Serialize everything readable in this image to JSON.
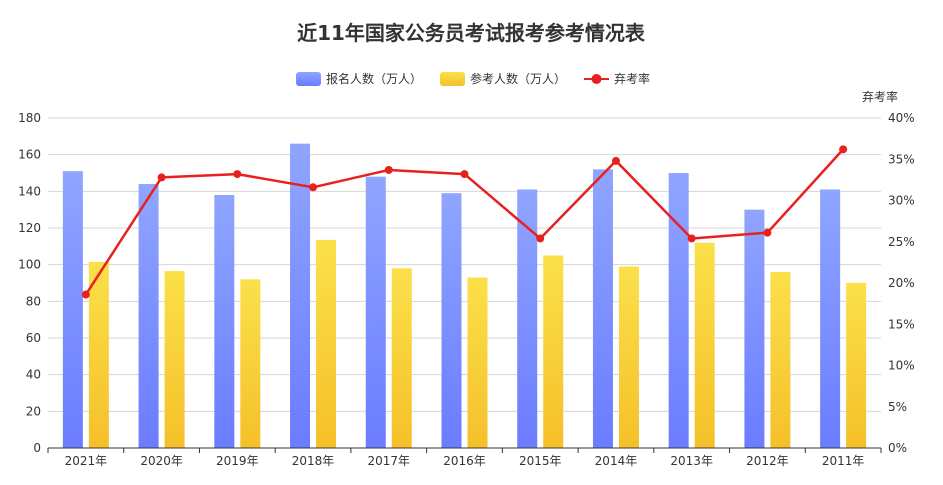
{
  "chart_data": {
    "type": "bar",
    "title": "近11年国家公务员考试报考参考情况表",
    "categories": [
      "2021年",
      "2020年",
      "2019年",
      "2018年",
      "2017年",
      "2016年",
      "2015年",
      "2014年",
      "2013年",
      "2012年",
      "2011年"
    ],
    "series": [
      {
        "name": "报名人数（万人）",
        "type": "bar",
        "color_top": "#8fa5ff",
        "color_bottom": "#6b7cff",
        "values": [
          151,
          144,
          138,
          166,
          148,
          139,
          141,
          152,
          150,
          130,
          141
        ]
      },
      {
        "name": "参考人数（万人）",
        "type": "bar",
        "color_top": "#fbe04a",
        "color_bottom": "#f5c02a",
        "values": [
          101.5,
          96.5,
          92,
          113.5,
          98,
          93,
          105,
          99,
          112,
          96,
          90
        ]
      },
      {
        "name": "弃考率",
        "type": "line",
        "axis": "right",
        "color": "#e8211e",
        "values": [
          18.6,
          32.8,
          33.2,
          31.6,
          33.7,
          33.2,
          25.4,
          34.8,
          25.4,
          26.1,
          36.2
        ]
      }
    ],
    "y_left": {
      "min": 0,
      "max": 180,
      "step": 20,
      "ticks": [
        "0",
        "20",
        "40",
        "60",
        "80",
        "100",
        "120",
        "140",
        "160",
        "180"
      ]
    },
    "y_right": {
      "name": "弃考率",
      "min": 0,
      "max": 40,
      "step": 5,
      "ticks": [
        "0%",
        "5%",
        "10%",
        "15%",
        "20%",
        "25%",
        "30%",
        "35%",
        "40%"
      ]
    },
    "legend_position": "top-center",
    "grid": true
  }
}
